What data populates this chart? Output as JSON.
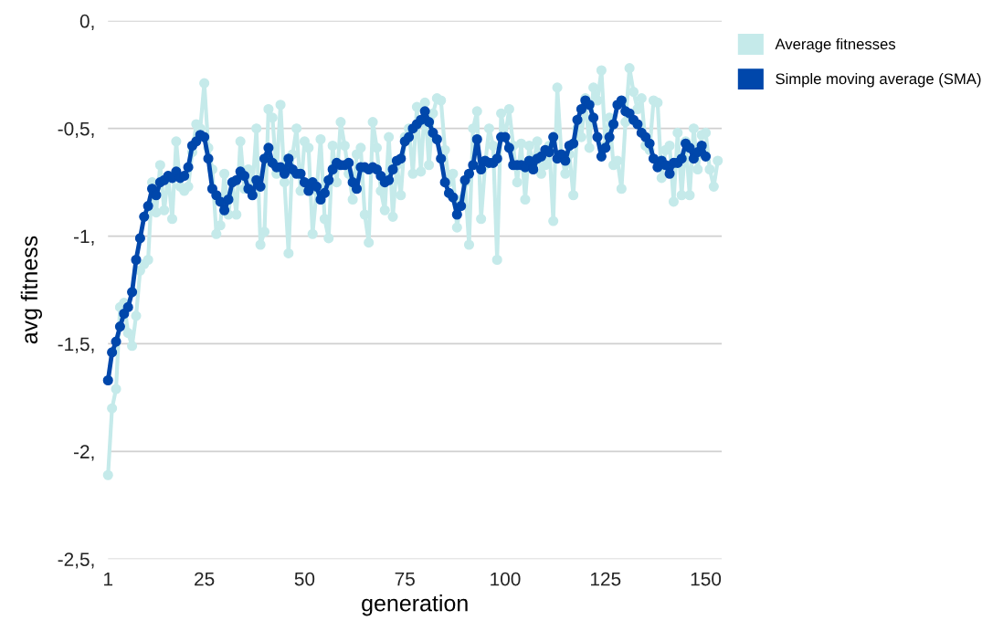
{
  "chart_data": {
    "type": "line",
    "xlabel": "generation",
    "ylabel": "avg fitness",
    "xlim": [
      1,
      154
    ],
    "xticks": [
      1,
      25,
      50,
      75,
      100,
      125,
      150
    ],
    "ylim": [
      -2.5,
      0
    ],
    "yticks": [
      {
        "value": 0,
        "label": "0,"
      },
      {
        "value": -0.5,
        "label": "-0,5,"
      },
      {
        "value": -1,
        "label": "-1,"
      },
      {
        "value": -1.5,
        "label": "-1,5,"
      },
      {
        "value": -2,
        "label": "-2,"
      },
      {
        "value": -2.5,
        "label": "-2,5,"
      }
    ],
    "grid": "y",
    "legend": "top right",
    "marker": "circle",
    "line_style": "solid",
    "series": [
      {
        "name": "Average fitnesses",
        "color": "#c5eaea",
        "x": [
          1,
          2,
          3,
          4,
          5,
          6,
          7,
          8,
          9,
          10,
          11,
          12,
          13,
          14,
          15,
          16,
          17,
          18,
          19,
          20,
          21,
          22,
          23,
          24,
          25,
          26,
          27,
          28,
          29,
          30,
          31,
          32,
          33,
          34,
          35,
          36,
          37,
          38,
          39,
          40,
          41,
          42,
          43,
          44,
          45,
          46,
          47,
          48,
          49,
          50,
          51,
          52,
          53,
          54,
          55,
          56,
          57,
          58,
          59,
          60,
          61,
          62,
          63,
          64,
          65,
          66,
          67,
          68,
          69,
          70,
          71,
          72,
          73,
          74,
          75,
          76,
          77,
          78,
          79,
          80,
          81,
          82,
          83,
          84,
          85,
          86,
          87,
          88,
          89,
          90,
          91,
          92,
          93,
          94,
          95,
          96,
          97,
          98,
          99,
          100,
          101,
          102,
          103,
          104,
          105,
          106,
          107,
          108,
          109,
          110,
          111,
          112,
          113,
          114,
          115,
          116,
          117,
          118,
          119,
          120,
          121,
          122,
          123,
          124,
          125,
          126,
          127,
          128,
          129,
          130,
          131,
          132,
          133,
          134,
          135,
          136,
          137,
          138,
          139,
          140,
          141,
          142,
          143,
          144,
          145,
          146,
          147,
          148,
          149,
          150,
          151,
          152,
          153
        ],
        "values": [
          -2.11,
          -1.8,
          -1.71,
          -1.33,
          -1.31,
          -1.45,
          -1.51,
          -1.37,
          -1.16,
          -1.13,
          -1.11,
          -0.75,
          -0.89,
          -0.67,
          -0.88,
          -0.72,
          -0.92,
          -0.56,
          -0.77,
          -0.79,
          -0.77,
          -0.61,
          -0.48,
          -0.5,
          -0.29,
          -0.59,
          -0.69,
          -0.99,
          -0.95,
          -0.71,
          -0.9,
          -0.75,
          -0.9,
          -0.56,
          -0.78,
          -0.69,
          -0.78,
          -0.5,
          -1.04,
          -0.98,
          -0.41,
          -0.45,
          -0.71,
          -0.39,
          -0.75,
          -1.08,
          -0.62,
          -0.5,
          -0.79,
          -0.56,
          -0.59,
          -0.99,
          -0.79,
          -0.55,
          -0.92,
          -1.01,
          -0.58,
          -0.75,
          -0.47,
          -0.58,
          -0.71,
          -0.83,
          -0.62,
          -0.59,
          -0.9,
          -1.03,
          -0.47,
          -0.59,
          -0.79,
          -0.88,
          -0.54,
          -0.91,
          -0.67,
          -0.81,
          -0.54,
          -0.5,
          -0.71,
          -0.4,
          -0.7,
          -0.38,
          -0.67,
          -0.43,
          -0.36,
          -0.37,
          -0.6,
          -0.75,
          -0.71,
          -0.96,
          -0.83,
          -0.75,
          -1.04,
          -0.5,
          -0.42,
          -0.92,
          -0.67,
          -0.5,
          -0.58,
          -1.11,
          -0.43,
          -0.54,
          -0.41,
          -0.58,
          -0.75,
          -0.57,
          -0.83,
          -0.58,
          -0.67,
          -0.56,
          -0.71,
          -0.67,
          -0.58,
          -0.93,
          -0.31,
          -0.62,
          -0.71,
          -0.62,
          -0.81,
          -0.5,
          -0.54,
          -0.36,
          -0.59,
          -0.31,
          -0.37,
          -0.23,
          -0.58,
          -0.45,
          -0.67,
          -0.65,
          -0.78,
          -0.47,
          -0.22,
          -0.33,
          -0.41,
          -0.36,
          -0.58,
          -0.6,
          -0.37,
          -0.38,
          -0.73,
          -0.6,
          -0.58,
          -0.84,
          -0.52,
          -0.81,
          -0.56,
          -0.81,
          -0.5,
          -0.69,
          -0.53,
          -0.52,
          -0.69,
          -0.77,
          -0.65
        ]
      },
      {
        "name": "Simple moving average (SMA)",
        "color": "#0047ab",
        "x": [
          1,
          2,
          3,
          4,
          5,
          6,
          7,
          8,
          9,
          10,
          11,
          12,
          13,
          14,
          15,
          16,
          17,
          18,
          19,
          20,
          21,
          22,
          23,
          24,
          25,
          26,
          27,
          28,
          29,
          30,
          31,
          32,
          33,
          34,
          35,
          36,
          37,
          38,
          39,
          40,
          41,
          42,
          43,
          44,
          45,
          46,
          47,
          48,
          49,
          50,
          51,
          52,
          53,
          54,
          55,
          56,
          57,
          58,
          59,
          60,
          61,
          62,
          63,
          64,
          65,
          66,
          67,
          68,
          69,
          70,
          71,
          72,
          73,
          74,
          75,
          76,
          77,
          78,
          79,
          80,
          81,
          82,
          83,
          84,
          85,
          86,
          87,
          88,
          89,
          90,
          91,
          92,
          93,
          94,
          95,
          96,
          97,
          98,
          99,
          100,
          101,
          102,
          103,
          104,
          105,
          106,
          107,
          108,
          109,
          110,
          111,
          112,
          113,
          114,
          115,
          116,
          117,
          118,
          119,
          120,
          121,
          122,
          123,
          124,
          125,
          126,
          127,
          128,
          129,
          130,
          131,
          132,
          133,
          134,
          135,
          136,
          137,
          138,
          139,
          140,
          141,
          142,
          143,
          144,
          145,
          146,
          147,
          148,
          149,
          150
        ],
        "values": [
          -1.67,
          -1.54,
          -1.49,
          -1.42,
          -1.36,
          -1.33,
          -1.26,
          -1.11,
          -1.01,
          -0.91,
          -0.86,
          -0.78,
          -0.81,
          -0.75,
          -0.74,
          -0.72,
          -0.73,
          -0.7,
          -0.73,
          -0.72,
          -0.68,
          -0.58,
          -0.56,
          -0.53,
          -0.54,
          -0.64,
          -0.78,
          -0.81,
          -0.84,
          -0.88,
          -0.83,
          -0.75,
          -0.74,
          -0.7,
          -0.72,
          -0.78,
          -0.81,
          -0.74,
          -0.77,
          -0.64,
          -0.59,
          -0.66,
          -0.68,
          -0.68,
          -0.71,
          -0.64,
          -0.69,
          -0.71,
          -0.71,
          -0.75,
          -0.79,
          -0.75,
          -0.77,
          -0.83,
          -0.8,
          -0.74,
          -0.69,
          -0.66,
          -0.67,
          -0.67,
          -0.66,
          -0.75,
          -0.78,
          -0.68,
          -0.68,
          -0.69,
          -0.68,
          -0.69,
          -0.72,
          -0.75,
          -0.74,
          -0.69,
          -0.65,
          -0.64,
          -0.56,
          -0.54,
          -0.5,
          -0.48,
          -0.46,
          -0.42,
          -0.47,
          -0.52,
          -0.55,
          -0.64,
          -0.75,
          -0.8,
          -0.82,
          -0.9,
          -0.86,
          -0.74,
          -0.71,
          -0.67,
          -0.55,
          -0.69,
          -0.65,
          -0.66,
          -0.66,
          -0.64,
          -0.54,
          -0.54,
          -0.59,
          -0.67,
          -0.67,
          -0.67,
          -0.68,
          -0.65,
          -0.69,
          -0.64,
          -0.63,
          -0.6,
          -0.61,
          -0.54,
          -0.64,
          -0.62,
          -0.65,
          -0.58,
          -0.57,
          -0.46,
          -0.41,
          -0.37,
          -0.39,
          -0.45,
          -0.54,
          -0.63,
          -0.59,
          -0.54,
          -0.48,
          -0.39,
          -0.37,
          -0.42,
          -0.43,
          -0.46,
          -0.48,
          -0.52,
          -0.54,
          -0.57,
          -0.64,
          -0.68,
          -0.65,
          -0.67,
          -0.71,
          -0.66,
          -0.66,
          -0.64,
          -0.57,
          -0.59,
          -0.64,
          -0.61,
          -0.58,
          -0.63
        ]
      }
    ]
  }
}
